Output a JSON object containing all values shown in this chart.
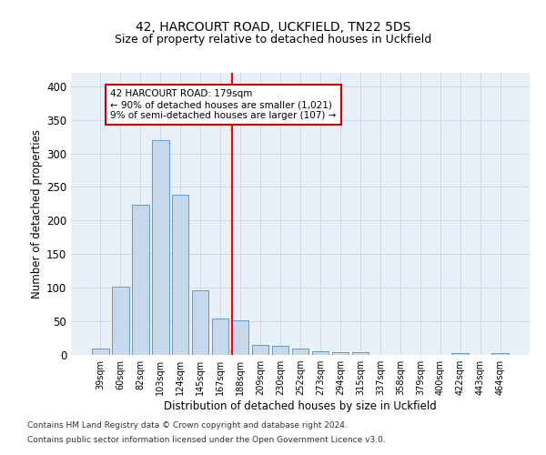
{
  "title": "42, HARCOURT ROAD, UCKFIELD, TN22 5DS",
  "subtitle": "Size of property relative to detached houses in Uckfield",
  "xlabel": "Distribution of detached houses by size in Uckfield",
  "ylabel": "Number of detached properties",
  "bar_labels": [
    "39sqm",
    "60sqm",
    "82sqm",
    "103sqm",
    "124sqm",
    "145sqm",
    "167sqm",
    "188sqm",
    "209sqm",
    "230sqm",
    "252sqm",
    "273sqm",
    "294sqm",
    "315sqm",
    "337sqm",
    "358sqm",
    "379sqm",
    "400sqm",
    "422sqm",
    "443sqm",
    "464sqm"
  ],
  "bar_values": [
    10,
    102,
    224,
    320,
    238,
    96,
    54,
    51,
    15,
    13,
    10,
    6,
    4,
    4,
    0,
    0,
    0,
    0,
    3,
    0,
    3
  ],
  "bar_color": "#c5d8ec",
  "bar_edgecolor": "#5b9bd5",
  "grid_color": "#d0d8e8",
  "background_color": "#eaf0f8",
  "ylim": [
    0,
    420
  ],
  "yticks": [
    0,
    50,
    100,
    150,
    200,
    250,
    300,
    350,
    400
  ],
  "property_line_x": 6.57,
  "annotation_text": "42 HARCOURT ROAD: 179sqm\n← 90% of detached houses are smaller (1,021)\n9% of semi-detached houses are larger (107) →",
  "annotation_box_color": "#ffffff",
  "annotation_box_edgecolor": "#cc0000",
  "footer_line1": "Contains HM Land Registry data © Crown copyright and database right 2024.",
  "footer_line2": "Contains public sector information licensed under the Open Government Licence v3.0."
}
